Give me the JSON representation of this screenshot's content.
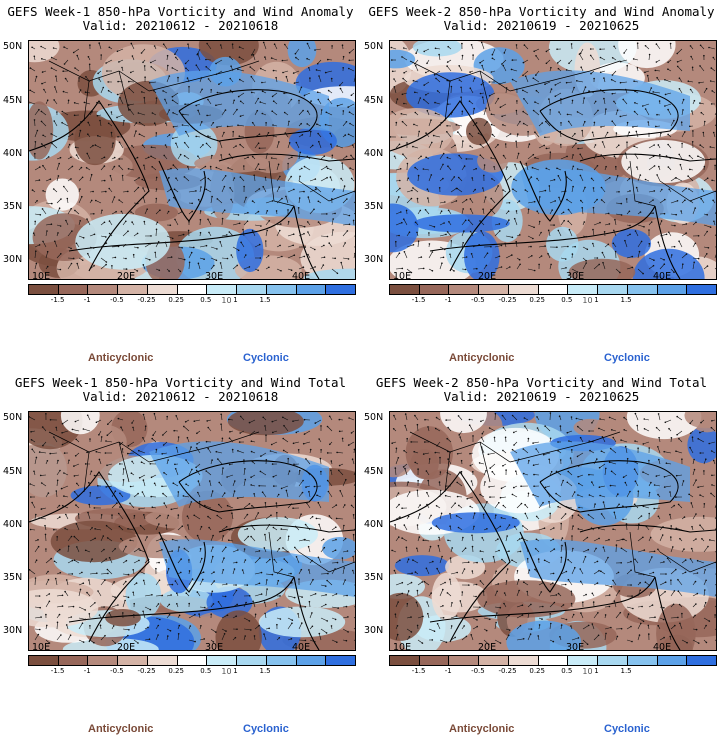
{
  "panels": [
    {
      "title": "GEFS Week-1 850-hPa Vorticity and Wind Anomaly",
      "valid": "Valid: 20210612 - 20210618"
    },
    {
      "title": "GEFS Week-2 850-hPa Vorticity and Wind Anomaly",
      "valid": "Valid: 20210619 - 20210625"
    },
    {
      "title": "GEFS Week-1 850-hPa Vorticity and Wind Total",
      "valid": "Valid: 20210612 - 20210618"
    },
    {
      "title": "GEFS Week-2 850-hPa Vorticity and Wind Total",
      "valid": "Valid: 20210619 - 20210625"
    }
  ],
  "axes": {
    "lat_labels": [
      "50N",
      "45N",
      "40N",
      "35N",
      "30N"
    ],
    "lon_labels": [
      "10E",
      "20E",
      "30E",
      "40E"
    ]
  },
  "colorbar": {
    "labels": [
      "-1.5",
      "-1",
      "-0.5",
      "-0.25",
      "0.25",
      "0.5",
      "1",
      "1.5"
    ],
    "scale_label": "10",
    "colors": [
      "#7b4f3f",
      "#97675a",
      "#b4897c",
      "#d4b3a6",
      "#eddcd4",
      "#ffffff",
      "#c9ecf8",
      "#a8d8f0",
      "#86c2ee",
      "#5ca1e8",
      "#2f6fe0"
    ]
  },
  "legend": {
    "anticyclonic": "Anticyclonic",
    "cyclonic": "Cyclonic"
  }
}
